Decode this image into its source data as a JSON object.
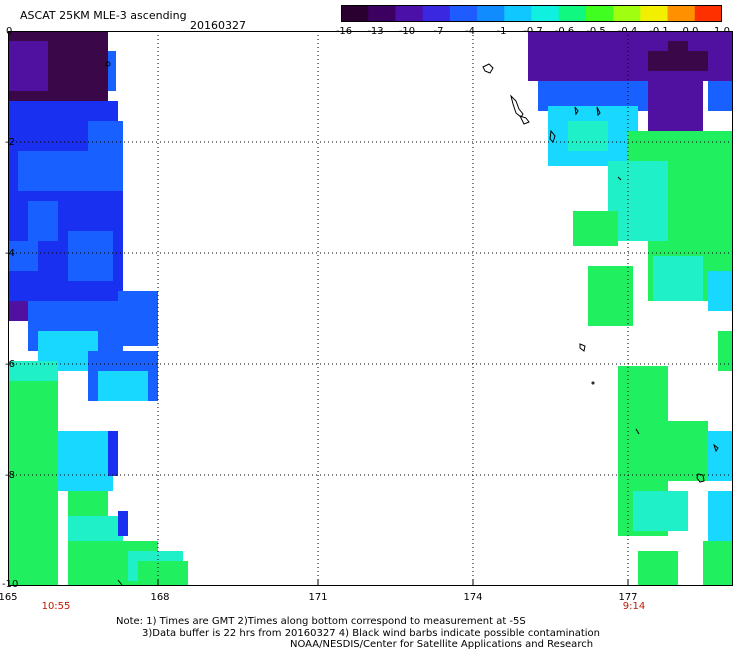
{
  "header": {
    "title": "ASCAT 25KM MLE-3 ascending",
    "date": "20160327"
  },
  "colorbar": {
    "labels": [
      "-16",
      "-13",
      "-10",
      "-7",
      "-4",
      "-1",
      "-0.7",
      "-0.6",
      "-0.5",
      "-0.4",
      "-0.1",
      "0.0",
      "1.0"
    ],
    "colors": [
      "#2a0030",
      "#3b0060",
      "#4a10a8",
      "#3a28e0",
      "#1f5cff",
      "#108cff",
      "#10c8ff",
      "#10f0e0",
      "#10f880",
      "#40ff20",
      "#a0ff10",
      "#f0f000",
      "#ff9000",
      "#ff3000"
    ]
  },
  "axes": {
    "lon_labels": [
      "165",
      "168",
      "171",
      "174",
      "177"
    ],
    "lat_labels": [
      "0",
      "-2",
      "-4",
      "-6",
      "-8",
      "-10"
    ]
  },
  "times": {
    "left": "10:55",
    "right": "9:14"
  },
  "notes": {
    "line1": "Note: 1) Times are GMT 2)Times along bottom correspond to measurement at -5S",
    "line2": "3)Data buffer is 22 hrs from 20160327 4) Black wind barbs indicate possible contamination",
    "line3": "NOAA/NESDIS/Center for Satellite Applications and Research"
  },
  "palette": {
    "dark": "#3a0848",
    "purple": "#5010a0",
    "blue": "#1a30f0",
    "mblue": "#1860ff",
    "cyan": "#18d8ff",
    "aqua": "#20f0c8",
    "green": "#20f060"
  }
}
